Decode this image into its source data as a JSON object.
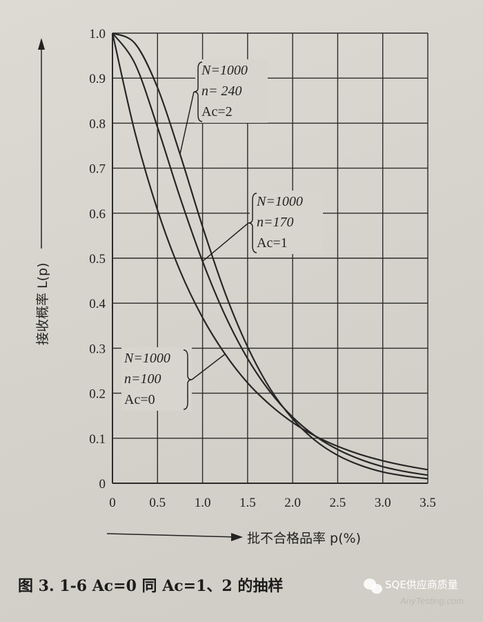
{
  "chart_data": {
    "type": "line",
    "title": "",
    "xlabel": "批不合格品率 p(%)",
    "ylabel": "接收概率 L(p)",
    "xlim": [
      0,
      3.5
    ],
    "ylim": [
      0,
      1.0
    ],
    "grid": true,
    "x_ticks": [
      "0",
      "0.5",
      "1.0",
      "1.5",
      "2.0",
      "2.5",
      "3.0",
      "3.5"
    ],
    "y_ticks": [
      "0",
      "0.1",
      "0.2",
      "0.3",
      "0.4",
      "0.5",
      "0.6",
      "0.7",
      "0.8",
      "0.9",
      "1.0"
    ],
    "x": [
      0,
      0.25,
      0.5,
      0.75,
      1.0,
      1.25,
      1.5,
      1.75,
      2.0,
      2.25,
      2.5,
      2.75,
      3.0,
      3.25,
      3.5
    ],
    "series": [
      {
        "label_lines": [
          "N=1000",
          "n=100",
          "Ac=0"
        ],
        "values": [
          1,
          0.779,
          0.607,
          0.472,
          0.368,
          0.287,
          0.223,
          0.174,
          0.135,
          0.105,
          0.082,
          0.064,
          0.05,
          0.039,
          0.03
        ]
      },
      {
        "label_lines": [
          "N=1000",
          "n=170",
          "Ac=1"
        ],
        "values": [
          1,
          0.932,
          0.791,
          0.635,
          0.493,
          0.373,
          0.277,
          0.203,
          0.147,
          0.105,
          0.075,
          0.053,
          0.037,
          0.026,
          0.018
        ]
      },
      {
        "label_lines": [
          "N=1000",
          "n= 240",
          "Ac=2"
        ],
        "values": [
          1,
          0.977,
          0.879,
          0.731,
          0.57,
          0.423,
          0.303,
          0.21,
          0.143,
          0.095,
          0.062,
          0.04,
          0.025,
          0.016,
          0.01
        ]
      }
    ],
    "line_color": "#262626"
  },
  "caption": "图 3. 1-6    Ac=0 同 Ac=1、2 的抽样",
  "watermark": {
    "text": "SQE供应商质量",
    "site": "AnyTesting.com",
    "icon": "wechat-icon"
  }
}
